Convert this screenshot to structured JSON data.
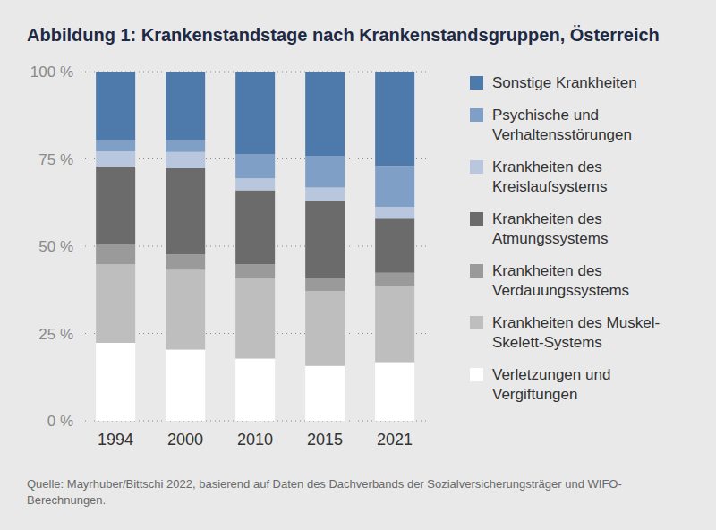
{
  "chart_data": {
    "type": "bar",
    "title": "Abbildung 1: Krankenstandstage nach Krankenstandsgruppen, Österreich",
    "source": "Quelle: Mayrhuber/Bittschi 2022, basierend auf Daten des Dachverbands der Sozialversicherungsträger und WIFO-Berechnungen.",
    "categories": [
      "1994",
      "2000",
      "2010",
      "2015",
      "2021"
    ],
    "stacked": true,
    "grid": true,
    "legend": "right",
    "ylim": [
      0,
      100
    ],
    "yticks": [
      {
        "value": 0,
        "label": "0 %"
      },
      {
        "value": 25,
        "label": "25 %"
      },
      {
        "value": 50,
        "label": "50 %"
      },
      {
        "value": 75,
        "label": "75 %"
      },
      {
        "value": 100,
        "label": "100 %"
      }
    ],
    "series": [
      {
        "name": "Verletzungen und Vergiftungen",
        "color": "#ffffff",
        "values": [
          22.3,
          20.4,
          17.8,
          15.7,
          16.8
        ]
      },
      {
        "name": "Krankheiten des Muskel-Skelett-Systems",
        "color": "#bebebe",
        "values": [
          22.5,
          22.8,
          23.0,
          21.5,
          21.7
        ]
      },
      {
        "name": "Krankheiten des Verdauungssystems",
        "color": "#9a9a9a",
        "values": [
          5.7,
          4.4,
          4.0,
          3.6,
          3.9
        ]
      },
      {
        "name": "Krankheiten des Atmungssystems",
        "color": "#6b6b6b",
        "values": [
          22.3,
          24.7,
          21.2,
          22.3,
          15.5
        ]
      },
      {
        "name": "Krankheiten des Kreislaufsystems",
        "color": "#b8c7de",
        "values": [
          4.4,
          4.7,
          3.4,
          3.7,
          3.4
        ]
      },
      {
        "name": "Psychische und Verhaltensstörungen",
        "color": "#809fc7",
        "values": [
          3.2,
          3.4,
          7.0,
          9.1,
          11.7
        ]
      },
      {
        "name": "Sonstige Krankheiten",
        "color": "#4e7aab",
        "values": [
          19.6,
          19.6,
          23.6,
          24.1,
          27.0
        ]
      }
    ]
  }
}
